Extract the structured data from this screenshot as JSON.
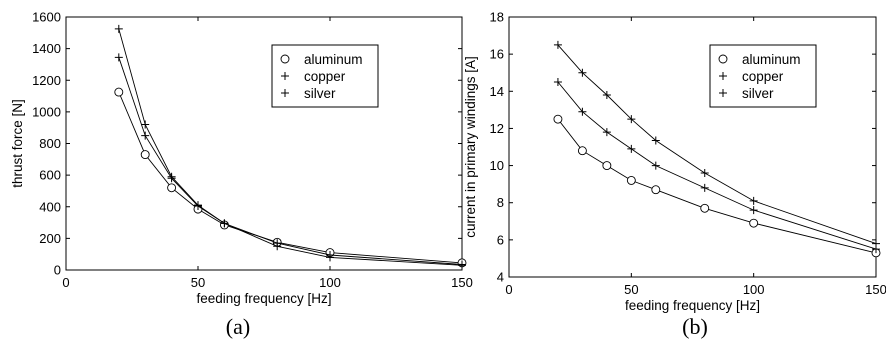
{
  "chart_data": [
    {
      "type": "line",
      "caption": "(a)",
      "xlabel": "feeding frequency [Hz]",
      "ylabel": "thrust force [N]",
      "xlim": [
        0,
        150
      ],
      "ylim": [
        0,
        1600
      ],
      "xticks": [
        0,
        50,
        100,
        150
      ],
      "yticks": [
        0,
        200,
        400,
        600,
        800,
        1000,
        1200,
        1400,
        1600
      ],
      "grid": false,
      "legend_position": "top-right",
      "x": [
        20,
        30,
        40,
        50,
        60,
        80,
        100,
        150
      ],
      "series": [
        {
          "name": "aluminum",
          "marker": "circle",
          "values": [
            1125,
            730,
            520,
            385,
            285,
            175,
            110,
            45
          ]
        },
        {
          "name": "copper",
          "marker": "plus",
          "values": [
            1345,
            850,
            580,
            405,
            295,
            170,
            95,
            35
          ]
        },
        {
          "name": "silver",
          "marker": "plus",
          "values": [
            1525,
            920,
            590,
            410,
            295,
            150,
            80,
            30
          ]
        }
      ]
    },
    {
      "type": "line",
      "caption": "(b)",
      "xlabel": "feeding frequency [Hz]",
      "ylabel": "current in primary windings [A]",
      "xlim": [
        0,
        150
      ],
      "ylim": [
        4,
        18
      ],
      "xticks": [
        0,
        50,
        100,
        150
      ],
      "yticks": [
        4,
        6,
        8,
        10,
        12,
        14,
        16,
        18
      ],
      "grid": false,
      "legend_position": "top-right",
      "x": [
        20,
        30,
        40,
        50,
        60,
        80,
        100,
        150
      ],
      "series": [
        {
          "name": "aluminum",
          "marker": "circle",
          "values": [
            12.5,
            10.8,
            10.0,
            9.2,
            8.7,
            7.7,
            6.9,
            5.3
          ]
        },
        {
          "name": "copper",
          "marker": "plus",
          "values": [
            14.5,
            12.9,
            11.8,
            10.9,
            10.0,
            8.8,
            7.6,
            5.5
          ]
        },
        {
          "name": "silver",
          "marker": "plus",
          "values": [
            16.5,
            15.0,
            13.8,
            12.5,
            11.35,
            9.6,
            8.1,
            5.8
          ]
        }
      ]
    }
  ]
}
